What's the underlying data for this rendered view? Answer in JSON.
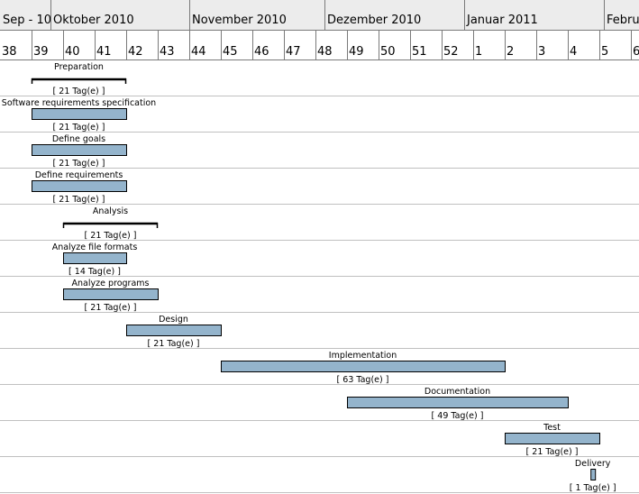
{
  "chart_data": {
    "type": "gantt",
    "months": [
      "Sep - 10",
      "Oktober 2010",
      "November 2010",
      "Dezember 2010",
      "Januar 2011",
      "Februa"
    ],
    "weeks": [
      "38",
      "39",
      "40",
      "41",
      "42",
      "43",
      "44",
      "45",
      "46",
      "47",
      "48",
      "49",
      "50",
      "51",
      "52",
      "1",
      "2",
      "3",
      "4",
      "5",
      "6"
    ],
    "tasks": [
      {
        "name": "Preparation",
        "start_week": 39,
        "end_week": 42,
        "duration_label": "[ 21 Tag(e) ]",
        "summary": true
      },
      {
        "name": "Software requirements specification",
        "start_week": 39,
        "end_week": 42,
        "duration_label": "[ 21 Tag(e) ]",
        "summary": false
      },
      {
        "name": "Define goals",
        "start_week": 39,
        "end_week": 42,
        "duration_label": "[ 21 Tag(e) ]",
        "summary": false
      },
      {
        "name": "Define requirements",
        "start_week": 39,
        "end_week": 42,
        "duration_label": "[ 21 Tag(e) ]",
        "summary": false
      },
      {
        "name": "Analysis",
        "start_week": 40,
        "end_week": 43,
        "duration_label": "[ 21 Tag(e) ]",
        "summary": true
      },
      {
        "name": "Analyze file formats",
        "start_week": 40,
        "end_week": 42,
        "duration_label": "[ 14 Tag(e) ]",
        "summary": false
      },
      {
        "name": "Analyze programs",
        "start_week": 40,
        "end_week": 43,
        "duration_label": "[ 21 Tag(e) ]",
        "summary": false
      },
      {
        "name": "Design",
        "start_week": 42,
        "end_week": 45,
        "duration_label": "[ 21 Tag(e) ]",
        "summary": false
      },
      {
        "name": "Implementation",
        "start_week": 45,
        "end_week": 54,
        "duration_label": "[ 63 Tag(e) ]",
        "summary": false
      },
      {
        "name": "Documentation",
        "start_week": 49,
        "end_week": 56,
        "duration_label": "[ 49 Tag(e) ]",
        "summary": false
      },
      {
        "name": "Test",
        "start_week": 54,
        "end_week": 57,
        "duration_label": "[ 21 Tag(e) ]",
        "summary": false
      },
      {
        "name": "Delivery",
        "start_week": 56.72,
        "end_week": 56.86,
        "duration_label": "[ 1 Tag(e) ]",
        "summary": false
      }
    ],
    "colors": {
      "bar_fill": "#94b4cc",
      "bar_stroke": "#000000",
      "header_bg": "#ececec",
      "grid": "#c0c0c0"
    }
  }
}
